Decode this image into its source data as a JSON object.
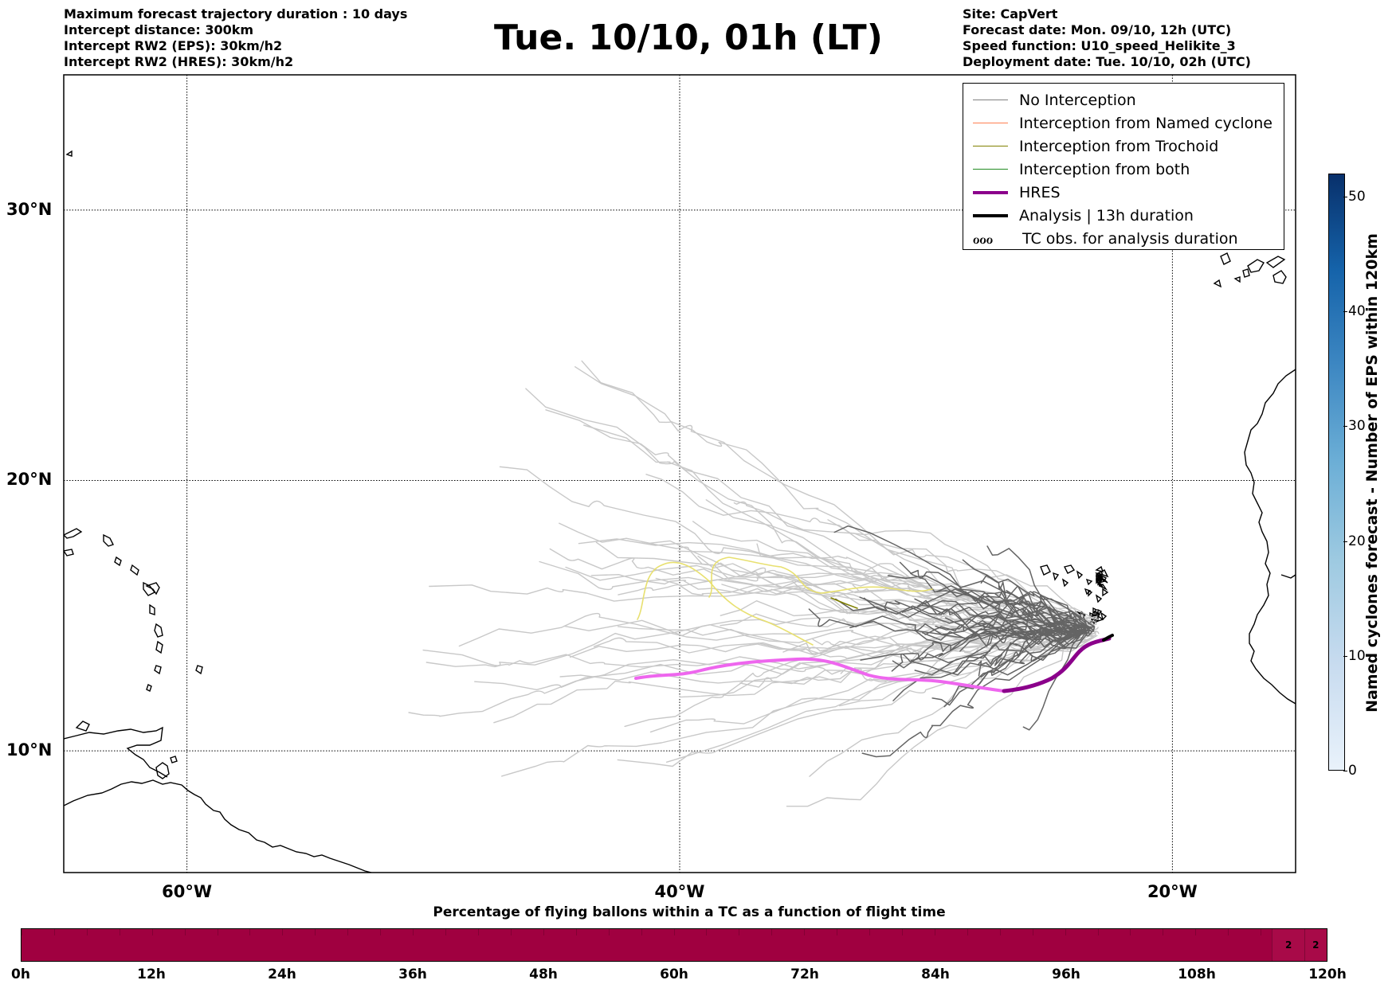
{
  "header_left": [
    "Maximum forecast trajectory duration : 10 days",
    "Intercept distance: 300km",
    "Intercept RW2 (EPS):  30km/h2",
    "Intercept RW2 (HRES): 30km/h2"
  ],
  "header_right": [
    "Site: CapVert",
    "Forecast date: Mon. 09/10, 12h (UTC)",
    "Speed function: U10_speed_Helikite_3",
    "Deployment date: Tue. 10/10, 02h (UTC)"
  ],
  "title": "Tue. 10/10, 01h (LT)",
  "map": {
    "lon_range": [
      -65,
      -15
    ],
    "lat_range": [
      5.5,
      35
    ],
    "lat_labels": [
      {
        "text": "30°N",
        "lat": 30
      },
      {
        "text": "20°N",
        "lat": 20
      },
      {
        "text": "10°N",
        "lat": 10
      }
    ],
    "lon_labels": [
      {
        "text": "60°W",
        "lon": -60
      },
      {
        "text": "40°W",
        "lon": -40
      },
      {
        "text": "20°W",
        "lon": -20
      }
    ],
    "colors": {
      "no_interception": "#c8c8c8",
      "no_interception_dark": "#646464",
      "named": "#ff7f50",
      "trochoid": "#808000",
      "both": "#228b22",
      "hres": "#8b008b",
      "hres_light": "#ee66ee",
      "analysis": "#000000",
      "yellow": "#e8e070"
    }
  },
  "legend": [
    {
      "label": "No Interception",
      "color": "#808080",
      "width": 1.5,
      "kind": "line"
    },
    {
      "label": "Interception from Named cyclone",
      "color": "#ff7f50",
      "width": 1.5,
      "kind": "line"
    },
    {
      "label": "Interception from Trochoid",
      "color": "#808000",
      "width": 1.5,
      "kind": "line"
    },
    {
      "label": "Interception from both",
      "color": "#228b22",
      "width": 1.5,
      "kind": "line"
    },
    {
      "label": "HRES",
      "color": "#8b008b",
      "width": 4,
      "kind": "line"
    },
    {
      "label": "Analysis | 13h duration",
      "color": "#000000",
      "width": 4,
      "kind": "line"
    },
    {
      "label": "TC obs. for analysis duration",
      "color": "#000000",
      "kind": "symbol",
      "symbol": "ℴℴℴ"
    }
  ],
  "colorbar_vertical": {
    "label": "Named cyclones forecast - Number of EPS within 120km",
    "min": 0,
    "max": 52,
    "ticks": [
      0,
      10,
      20,
      30,
      40,
      50
    ]
  },
  "colorbar_horizontal": {
    "title": "Percentage of flying ballons within a TC as a function of flight time",
    "ticks": [
      "0h",
      "12h",
      "24h",
      "36h",
      "48h",
      "60h",
      "72h",
      "84h",
      "96h",
      "108h",
      "120h"
    ],
    "segments": [
      {
        "from_h": 115,
        "to_h": 118,
        "value": "2"
      },
      {
        "from_h": 118,
        "to_h": 120,
        "value": "2"
      }
    ]
  }
}
